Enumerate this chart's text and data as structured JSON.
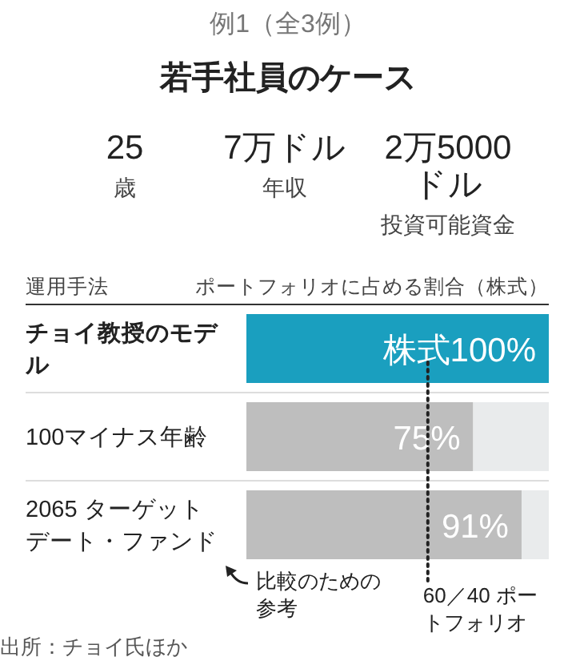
{
  "chart_data": {
    "type": "bar",
    "orientation": "horizontal",
    "stacked": true,
    "subtitle": "例1（全3例）",
    "title": "若手社員のケース",
    "ylabel": "運用手法",
    "xlabel": "ポートフォリオに占める割合（株式）",
    "categories": [
      "チョイ教授のモデル",
      "100マイナス年齢",
      "2065 ターゲットデート・ファンド"
    ],
    "series": [
      {
        "colors": [
          "#1a9fbf",
          "#bebebe",
          "#bebebe"
        ],
        "values": [
          100,
          75,
          91
        ],
        "value_labels": [
          "株式100%",
          "75%",
          "91%"
        ]
      },
      {
        "color": "#e9ebec",
        "values": [
          0,
          25,
          9
        ]
      }
    ],
    "xlim": [
      0,
      100
    ],
    "ref_lines": [
      {
        "axis": "x",
        "value": 60,
        "label": "60／40\nポートフォリオ",
        "line_style": "dotted",
        "color": "#222222"
      }
    ],
    "annotations": [
      "25",
      "歳",
      "7万ドル",
      "年収",
      "2万5000ドル",
      "投資可能資金",
      "比較のための参考",
      "出所：チョイ氏ほか"
    ]
  }
}
